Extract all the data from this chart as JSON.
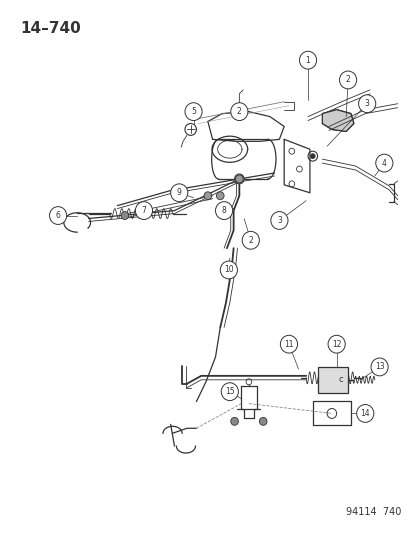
{
  "title": "14–740",
  "footer": "94114  740",
  "bg_color": "#ffffff",
  "title_fontsize": 11,
  "footer_fontsize": 7,
  "line_color": "#333333",
  "fig_w": 4.14,
  "fig_h": 5.33,
  "dpi": 100
}
